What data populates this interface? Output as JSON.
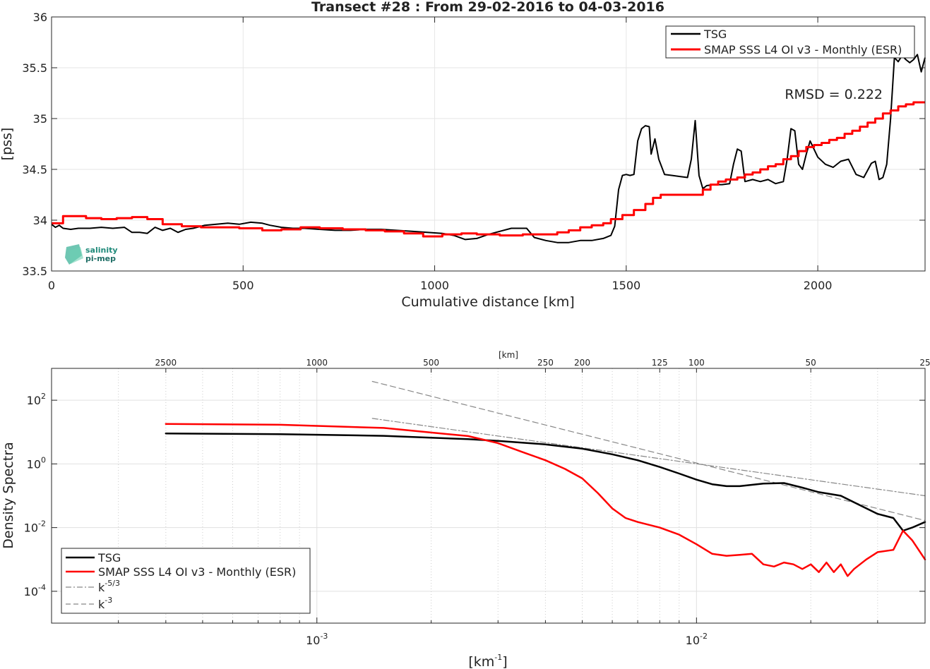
{
  "chart_data": [
    {
      "type": "line",
      "title": "Transect #28 : From 29-02-2016 to 04-03-2016",
      "xlabel": "Cumulative distance [km]",
      "ylabel": "[pss]",
      "xlim": [
        0,
        2280
      ],
      "ylim": [
        33.5,
        36
      ],
      "xticks": [
        0,
        500,
        1000,
        1500,
        2000
      ],
      "yticks": [
        "33.5",
        "34",
        "34.5",
        "35",
        "35.5",
        "36"
      ],
      "grid": true,
      "legend_position": "top-right",
      "annotation": "RMSD = 0.222",
      "logo": {
        "line1": "salinity",
        "line2": "pi-mep"
      },
      "series": [
        {
          "name": "TSG",
          "color": "#000000",
          "x": [
            0,
            10,
            20,
            30,
            50,
            70,
            100,
            130,
            160,
            190,
            210,
            230,
            250,
            270,
            290,
            310,
            330,
            350,
            370,
            400,
            430,
            460,
            490,
            520,
            550,
            570,
            600,
            630,
            660,
            700,
            740,
            780,
            820,
            860,
            900,
            940,
            980,
            1020,
            1050,
            1080,
            1110,
            1140,
            1170,
            1200,
            1240,
            1260,
            1290,
            1320,
            1350,
            1380,
            1410,
            1440,
            1460,
            1470,
            1480,
            1490,
            1500,
            1510,
            1520,
            1530,
            1540,
            1550,
            1560,
            1565,
            1575,
            1585,
            1600,
            1620,
            1640,
            1660,
            1670,
            1680,
            1690,
            1700,
            1710,
            1730,
            1750,
            1770,
            1780,
            1790,
            1800,
            1810,
            1830,
            1850,
            1870,
            1890,
            1910,
            1920,
            1930,
            1940,
            1950,
            1960,
            1970,
            1980,
            2000,
            2020,
            2040,
            2060,
            2080,
            2100,
            2120,
            2140,
            2150,
            2160,
            2170,
            2180,
            2190,
            2200,
            2210,
            2220,
            2230,
            2240,
            2250,
            2260,
            2270,
            2280
          ],
          "y": [
            33.96,
            33.93,
            33.95,
            33.92,
            33.91,
            33.92,
            33.92,
            33.93,
            33.92,
            33.93,
            33.88,
            33.88,
            33.87,
            33.93,
            33.9,
            33.92,
            33.88,
            33.91,
            33.92,
            33.95,
            33.96,
            33.97,
            33.96,
            33.98,
            33.97,
            33.95,
            33.93,
            33.92,
            33.92,
            33.91,
            33.9,
            33.9,
            33.91,
            33.91,
            33.9,
            33.89,
            33.88,
            33.87,
            33.85,
            33.81,
            33.82,
            33.86,
            33.89,
            33.92,
            33.92,
            33.83,
            33.8,
            33.78,
            33.78,
            33.8,
            33.8,
            33.82,
            33.85,
            33.94,
            34.3,
            34.44,
            34.45,
            34.44,
            34.45,
            34.78,
            34.9,
            34.93,
            34.92,
            34.65,
            34.8,
            34.6,
            34.45,
            34.44,
            34.43,
            34.42,
            34.6,
            34.98,
            34.44,
            34.31,
            34.34,
            34.35,
            34.35,
            34.36,
            34.55,
            34.7,
            34.68,
            34.38,
            34.4,
            34.38,
            34.4,
            34.36,
            34.38,
            34.6,
            34.9,
            34.88,
            34.55,
            34.5,
            34.65,
            34.78,
            34.62,
            34.55,
            34.52,
            34.58,
            34.6,
            34.45,
            34.42,
            34.56,
            34.58,
            34.4,
            34.42,
            34.55,
            35.0,
            35.6,
            35.56,
            35.62,
            35.58,
            35.55,
            35.58,
            35.63,
            35.46,
            35.6
          ],
          "line_width": 2
        },
        {
          "name": "SMAP SSS L4 OI v3 - Monthly (ESR)",
          "color": "#ff0000",
          "x": [
            0,
            30,
            90,
            130,
            170,
            210,
            250,
            290,
            340,
            390,
            440,
            490,
            550,
            600,
            650,
            700,
            760,
            820,
            870,
            920,
            970,
            1020,
            1070,
            1110,
            1170,
            1230,
            1290,
            1320,
            1350,
            1380,
            1410,
            1440,
            1460,
            1490,
            1520,
            1550,
            1570,
            1590,
            1620,
            1650,
            1680,
            1700,
            1720,
            1740,
            1760,
            1790,
            1810,
            1830,
            1850,
            1870,
            1890,
            1910,
            1930,
            1950,
            1970,
            1990,
            2010,
            2030,
            2050,
            2070,
            2090,
            2110,
            2130,
            2150,
            2170,
            2190,
            2210,
            2230,
            2250,
            2280
          ],
          "y": [
            33.97,
            34.04,
            34.02,
            34.01,
            34.02,
            34.03,
            34.01,
            33.96,
            33.94,
            33.93,
            33.93,
            33.92,
            33.9,
            33.91,
            33.93,
            33.92,
            33.91,
            33.9,
            33.89,
            33.87,
            33.84,
            33.86,
            33.87,
            33.86,
            33.85,
            33.86,
            33.86,
            33.88,
            33.9,
            33.93,
            33.95,
            33.97,
            34.01,
            34.05,
            34.1,
            34.16,
            34.22,
            34.25,
            34.25,
            34.25,
            34.25,
            34.3,
            34.35,
            34.38,
            34.4,
            34.42,
            34.45,
            34.47,
            34.5,
            34.53,
            34.55,
            34.6,
            34.63,
            34.68,
            34.72,
            34.74,
            34.76,
            34.79,
            34.81,
            34.85,
            34.88,
            34.92,
            34.96,
            35.0,
            35.05,
            35.08,
            35.12,
            35.14,
            35.16,
            35.16
          ],
          "line_width": 3
        }
      ]
    },
    {
      "type": "line",
      "title": "",
      "xlabel_base": "[km",
      "xlabel_exp": "-1",
      "xlabel_close": "]",
      "ylabel": "Density Spectra",
      "xscale": "log",
      "yscale": "log",
      "xlim": [
        0.0002,
        0.04
      ],
      "ylim": [
        1e-05,
        1000
      ],
      "xticks": [
        {
          "value": 0.001,
          "base": "10",
          "exp": "-3"
        },
        {
          "value": 0.01,
          "base": "10",
          "exp": "-2"
        }
      ],
      "yticks": [
        {
          "value": 0.0001,
          "base": "10",
          "exp": "-4"
        },
        {
          "value": 0.01,
          "base": "10",
          "exp": "-2"
        },
        {
          "value": 1,
          "base": "10",
          "exp": "0"
        },
        {
          "value": 100,
          "base": "10",
          "exp": "2"
        }
      ],
      "top_axis_label": "[km]",
      "top_axis_ticks": [
        2500,
        1000,
        500,
        250,
        200,
        125,
        100,
        50,
        25
      ],
      "grid": true,
      "legend_position": "bottom-left",
      "series": [
        {
          "name": "TSG",
          "color": "#000000",
          "style": "solid",
          "line_width": 2.5,
          "x": [
            0.0004,
            0.0008,
            0.0015,
            0.0025,
            0.003,
            0.004,
            0.005,
            0.006,
            0.007,
            0.008,
            0.009,
            0.01,
            0.011,
            0.012,
            0.013,
            0.015,
            0.017,
            0.019,
            0.021,
            0.024,
            0.027,
            0.03,
            0.033,
            0.035,
            0.037,
            0.04
          ],
          "y": [
            9,
            8.6,
            7.6,
            6,
            5.3,
            4.1,
            3.0,
            2.0,
            1.3,
            0.8,
            0.5,
            0.32,
            0.23,
            0.2,
            0.2,
            0.24,
            0.25,
            0.18,
            0.13,
            0.1,
            0.05,
            0.027,
            0.02,
            0.008,
            0.01,
            0.015
          ]
        },
        {
          "name": "SMAP SSS L4 OI v3 - Monthly (ESR)",
          "color": "#ff0000",
          "style": "solid",
          "line_width": 2.5,
          "x": [
            0.0004,
            0.0008,
            0.0015,
            0.0025,
            0.003,
            0.0035,
            0.004,
            0.0045,
            0.005,
            0.0055,
            0.006,
            0.0065,
            0.007,
            0.008,
            0.009,
            0.01,
            0.011,
            0.012,
            0.013,
            0.014,
            0.015,
            0.016,
            0.017,
            0.018,
            0.019,
            0.02,
            0.021,
            0.022,
            0.023,
            0.024,
            0.025,
            0.026,
            0.028,
            0.03,
            0.033,
            0.035,
            0.037,
            0.04
          ],
          "y": [
            18,
            17,
            13.5,
            7.5,
            4.5,
            2.3,
            1.3,
            0.7,
            0.35,
            0.12,
            0.04,
            0.02,
            0.015,
            0.01,
            0.006,
            0.003,
            0.0015,
            0.0013,
            0.0014,
            0.0015,
            0.0007,
            0.0006,
            0.0008,
            0.0007,
            0.0005,
            0.0007,
            0.0004,
            0.0008,
            0.0004,
            0.0007,
            0.0003,
            0.0005,
            0.001,
            0.0017,
            0.002,
            0.008,
            0.004,
            0.001
          ]
        },
        {
          "name": "k-5/3",
          "label_base": "k",
          "label_exp": "-5/3",
          "color": "#888888",
          "style": "dashdot",
          "line_width": 1.2,
          "x": [
            0.0014,
            0.04
          ],
          "y": [
            26.9,
            0.1
          ]
        },
        {
          "name": "k-3",
          "label_base": "k",
          "label_exp": "-3",
          "color": "#888888",
          "style": "dashed",
          "line_width": 1.2,
          "x": [
            0.0014,
            0.04
          ],
          "y": [
            389,
            0.0167
          ]
        }
      ]
    }
  ]
}
